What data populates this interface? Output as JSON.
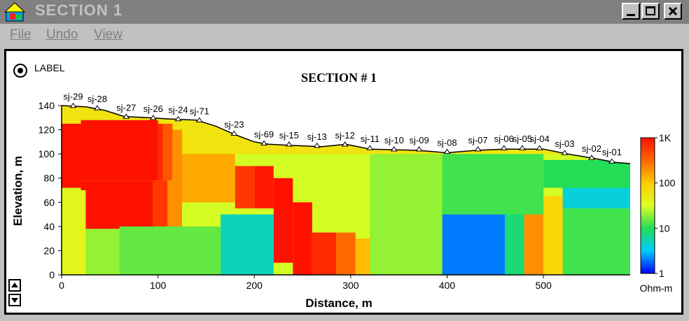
{
  "window": {
    "title": "SECTION 1"
  },
  "menu": [
    "File",
    "Undo",
    "View"
  ],
  "label_option": "LABEL",
  "chart_data": {
    "type": "heatmap",
    "title": "SECTION # 1",
    "xlabel": "Distance, m",
    "ylabel": "Elevation, m",
    "xlim": [
      0,
      590
    ],
    "ylim": [
      0,
      150
    ],
    "x_ticks": [
      "0",
      "100",
      "200",
      "300",
      "400",
      "500"
    ],
    "y_ticks": [
      "0",
      "20",
      "40",
      "60",
      "80",
      "100",
      "120",
      "140"
    ],
    "colorbar": {
      "unit": "Ohm-m",
      "scale": "log",
      "range": [
        1,
        1000
      ],
      "ticks": [
        "1K",
        "100",
        "10",
        "1"
      ],
      "colors": [
        "#0000ff",
        "#00ccff",
        "#22dd55",
        "#ddff22",
        "#ffcc00",
        "#ff6600",
        "#ff1100"
      ]
    },
    "stations": [
      {
        "name": "sj-29",
        "x": 12,
        "elev": 139
      },
      {
        "name": "sj-28",
        "x": 37,
        "elev": 137
      },
      {
        "name": "sj-27",
        "x": 67,
        "elev": 130
      },
      {
        "name": "sj-26",
        "x": 95,
        "elev": 129
      },
      {
        "name": "sj-24",
        "x": 121,
        "elev": 128
      },
      {
        "name": "sj-71",
        "x": 143,
        "elev": 127
      },
      {
        "name": "sj-23",
        "x": 179,
        "elev": 116
      },
      {
        "name": "sj-69",
        "x": 210,
        "elev": 108
      },
      {
        "name": "sj-15",
        "x": 236,
        "elev": 107
      },
      {
        "name": "sj-13",
        "x": 265,
        "elev": 106
      },
      {
        "name": "sj-12",
        "x": 294,
        "elev": 107
      },
      {
        "name": "sj-11",
        "x": 320,
        "elev": 104
      },
      {
        "name": "sj-10",
        "x": 345,
        "elev": 103
      },
      {
        "name": "sj-09",
        "x": 371,
        "elev": 103
      },
      {
        "name": "sj-08",
        "x": 400,
        "elev": 101
      },
      {
        "name": "sj-07",
        "x": 432,
        "elev": 103
      },
      {
        "name": "sj-06",
        "x": 459,
        "elev": 104
      },
      {
        "name": "sj-05",
        "x": 478,
        "elev": 104
      },
      {
        "name": "sj-04",
        "x": 496,
        "elev": 104
      },
      {
        "name": "sj-03",
        "x": 522,
        "elev": 100
      },
      {
        "name": "sj-02",
        "x": 550,
        "elev": 96
      },
      {
        "name": "sj-01",
        "x": 571,
        "elev": 93
      }
    ],
    "surface": [
      [
        0,
        140
      ],
      [
        25,
        139
      ],
      [
        45,
        136
      ],
      [
        65,
        131
      ],
      [
        90,
        130
      ],
      [
        110,
        129
      ],
      [
        140,
        128
      ],
      [
        160,
        123
      ],
      [
        180,
        116
      ],
      [
        200,
        110
      ],
      [
        215,
        108
      ],
      [
        240,
        107
      ],
      [
        270,
        106
      ],
      [
        295,
        108
      ],
      [
        320,
        104
      ],
      [
        370,
        103
      ],
      [
        400,
        101
      ],
      [
        430,
        103
      ],
      [
        460,
        104
      ],
      [
        500,
        104
      ],
      [
        525,
        100
      ],
      [
        555,
        96
      ],
      [
        575,
        93
      ],
      [
        590,
        92
      ]
    ],
    "blocks": [
      {
        "x0": 0,
        "x1": 20,
        "y0": 72,
        "y1": 125,
        "v": 1000
      },
      {
        "x0": 20,
        "x1": 100,
        "y0": 78,
        "y1": 128,
        "v": 1000
      },
      {
        "x0": 100,
        "x1": 105,
        "y0": 78,
        "y1": 125,
        "v": 700
      },
      {
        "x0": 105,
        "x1": 115,
        "y0": 78,
        "y1": 125,
        "v": 400
      },
      {
        "x0": 115,
        "x1": 125,
        "y0": 78,
        "y1": 120,
        "v": 200
      },
      {
        "x0": 20,
        "x1": 95,
        "y0": 38,
        "y1": 78,
        "v": 1000
      },
      {
        "x0": 95,
        "x1": 110,
        "y0": 40,
        "y1": 78,
        "v": 600
      },
      {
        "x0": 110,
        "x1": 125,
        "y0": 40,
        "y1": 78,
        "v": 200
      },
      {
        "x0": 125,
        "x1": 180,
        "y0": 60,
        "y1": 100,
        "v": 150
      },
      {
        "x0": 180,
        "x1": 200,
        "y0": 55,
        "y1": 90,
        "v": 600
      },
      {
        "x0": 200,
        "x1": 220,
        "y0": 55,
        "y1": 90,
        "v": 900
      },
      {
        "x0": 220,
        "x1": 240,
        "y0": 10,
        "y1": 80,
        "v": 1000
      },
      {
        "x0": 240,
        "x1": 260,
        "y0": 0,
        "y1": 60,
        "v": 1000
      },
      {
        "x0": 260,
        "x1": 285,
        "y0": 0,
        "y1": 35,
        "v": 700
      },
      {
        "x0": 285,
        "x1": 305,
        "y0": 0,
        "y1": 35,
        "v": 300
      },
      {
        "x0": 305,
        "x1": 320,
        "y0": 0,
        "y1": 30,
        "v": 120
      },
      {
        "x0": 165,
        "x1": 220,
        "y0": 0,
        "y1": 50,
        "v": 5
      },
      {
        "x0": 0,
        "x1": 25,
        "y0": 0,
        "y1": 70,
        "v": 40
      },
      {
        "x0": 25,
        "x1": 60,
        "y0": 0,
        "y1": 38,
        "v": 20
      },
      {
        "x0": 60,
        "x1": 165,
        "y0": 0,
        "y1": 40,
        "v": 15
      },
      {
        "x0": 320,
        "x1": 395,
        "y0": 0,
        "y1": 100,
        "v": 20
      },
      {
        "x0": 395,
        "x1": 460,
        "y0": 0,
        "y1": 50,
        "v": 2
      },
      {
        "x0": 460,
        "x1": 480,
        "y0": 0,
        "y1": 55,
        "v": 8
      },
      {
        "x0": 480,
        "x1": 500,
        "y0": 0,
        "y1": 65,
        "v": 200
      },
      {
        "x0": 500,
        "x1": 520,
        "y0": 0,
        "y1": 65,
        "v": 80
      },
      {
        "x0": 520,
        "x1": 590,
        "y0": 0,
        "y1": 55,
        "v": 12
      },
      {
        "x0": 520,
        "x1": 590,
        "y0": 55,
        "y1": 72,
        "v": 4
      },
      {
        "x0": 500,
        "x1": 590,
        "y0": 72,
        "y1": 95,
        "v": 10
      },
      {
        "x0": 395,
        "x1": 500,
        "y0": 50,
        "y1": 100,
        "v": 12
      }
    ]
  }
}
